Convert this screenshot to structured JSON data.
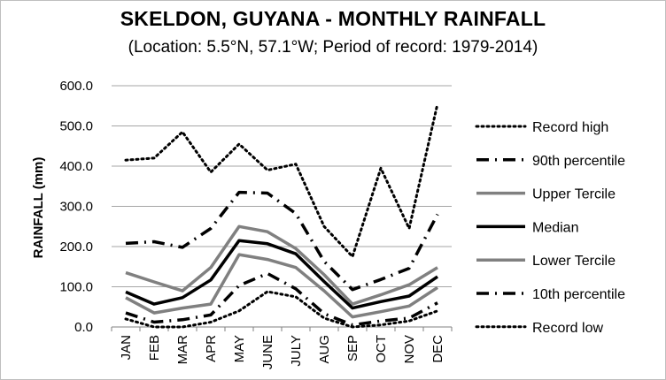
{
  "chart_data": {
    "type": "line",
    "title": "SKELDON, GUYANA - MONTHLY RAINFALL",
    "subtitle": "(Location: 5.5°N, 57.1°W; Period of record: 1979-2014)",
    "ylabel": "RAINFALL (mm)",
    "xlabel": "",
    "ylim": [
      0,
      600
    ],
    "yticks": [
      "0.0",
      "100.0",
      "200.0",
      "300.0",
      "400.0",
      "500.0",
      "600.0"
    ],
    "grid": "horizontal",
    "legend_position": "right",
    "categories": [
      "JAN",
      "FEB",
      "MAR",
      "APR",
      "MAY",
      "JUNE",
      "JULY",
      "AUG",
      "SEP",
      "OCT",
      "NOV",
      "DEC"
    ],
    "series": [
      {
        "name": "Record high",
        "style": "dotted",
        "color": "#000000",
        "values": [
          415,
          420,
          485,
          385,
          455,
          390,
          405,
          250,
          175,
          395,
          245,
          555
        ]
      },
      {
        "name": "90th percentile",
        "style": "dashdot",
        "color": "#000000",
        "values": [
          208,
          212,
          198,
          245,
          335,
          333,
          282,
          163,
          93,
          118,
          146,
          280
        ]
      },
      {
        "name": "Upper Tercile",
        "style": "solid",
        "color": "#808080",
        "values": [
          135,
          112,
          90,
          148,
          250,
          237,
          195,
          130,
          57,
          80,
          105,
          148
        ]
      },
      {
        "name": "Median",
        "style": "solid",
        "color": "#000000",
        "values": [
          87,
          57,
          73,
          117,
          215,
          207,
          182,
          113,
          47,
          63,
          77,
          125
        ]
      },
      {
        "name": "Lower Tercile",
        "style": "solid",
        "color": "#808080",
        "values": [
          73,
          35,
          47,
          57,
          180,
          168,
          148,
          90,
          25,
          38,
          52,
          98
        ]
      },
      {
        "name": "10th percentile",
        "style": "dashdot",
        "color": "#000000",
        "values": [
          35,
          12,
          18,
          30,
          103,
          133,
          95,
          33,
          5,
          15,
          22,
          60
        ]
      },
      {
        "name": "Record low",
        "style": "dotted",
        "color": "#000000",
        "values": [
          20,
          0,
          0,
          12,
          40,
          88,
          75,
          22,
          0,
          5,
          15,
          40
        ]
      }
    ]
  }
}
